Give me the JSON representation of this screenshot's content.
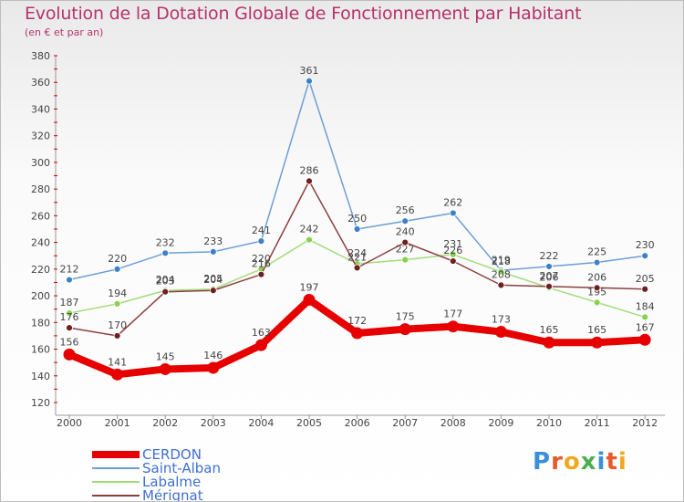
{
  "title": "Evolution de la Dotation Globale de Fonctionnement par Habitant",
  "subtitle": "(en € et par an)",
  "logo": {
    "letters": [
      "P",
      "r",
      "o",
      "x",
      "i",
      "t",
      "i"
    ],
    "colors": [
      "#3a8fd8",
      "#e85a2c",
      "#f0a820",
      "#4caf50",
      "#3a8fd8",
      "#e85a2c",
      "#f0a820"
    ]
  },
  "chart_data": {
    "type": "line",
    "x": [
      "2000",
      "2001",
      "2002",
      "2003",
      "2004",
      "2005",
      "2006",
      "2007",
      "2008",
      "2009",
      "2010",
      "2011",
      "2012"
    ],
    "yticks": [
      "120",
      "140",
      "160",
      "180",
      "200",
      "220",
      "240",
      "260",
      "280",
      "300",
      "320",
      "340",
      "360",
      "380"
    ],
    "ylim": [
      120,
      380
    ],
    "grid": false,
    "legend": "bottom-left",
    "series": [
      {
        "name": "Saint-Alban",
        "color": "#6e9ed6",
        "marker": "#3d82c8",
        "width": 1.5,
        "values": [
          212,
          220,
          232,
          233,
          241,
          361,
          250,
          256,
          262,
          219,
          222,
          225,
          230
        ]
      },
      {
        "name": "Labalme",
        "color": "#a4dc7c",
        "marker": "#86d24f",
        "width": 1.5,
        "values": [
          187,
          194,
          204,
          205,
          220,
          242,
          224,
          227,
          231,
          218,
          206,
          195,
          184
        ]
      },
      {
        "name": "Mérignat",
        "color": "#8c3f3f",
        "marker": "#6e1f1f",
        "width": 1.5,
        "values": [
          176,
          170,
          203,
          204,
          216,
          286,
          221,
          240,
          226,
          208,
          207,
          206,
          205
        ]
      },
      {
        "name": "CERDON",
        "color": "#e60000",
        "marker": "#e60000",
        "width": 8,
        "values": [
          156,
          141,
          145,
          146,
          163,
          197,
          172,
          175,
          177,
          173,
          165,
          165,
          167
        ]
      }
    ],
    "legend_order": [
      "CERDON",
      "Saint-Alban",
      "Labalme",
      "Mérignat"
    ]
  }
}
